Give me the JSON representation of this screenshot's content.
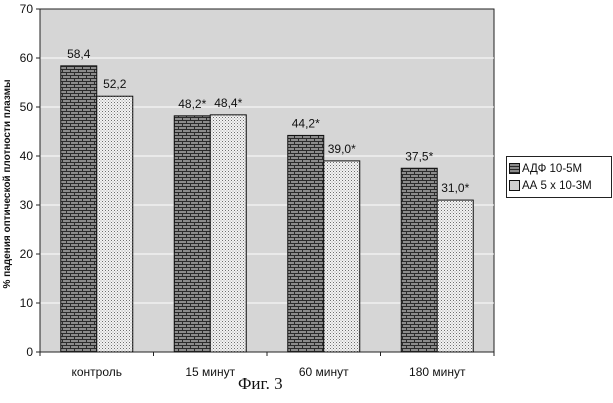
{
  "chart_data": {
    "type": "bar",
    "ylabel": "% падения оптической плотности плазмы",
    "xlabel": "",
    "ylim": [
      0,
      70
    ],
    "yticks": [
      0,
      10,
      20,
      30,
      40,
      50,
      60,
      70
    ],
    "grid": true,
    "legend_position": "right",
    "categories": [
      "контроль",
      "15 минут",
      "60 минут",
      "180 минут"
    ],
    "series": [
      {
        "name": "АДФ 10-5М",
        "values": [
          58.4,
          48.2,
          44.2,
          37.5
        ],
        "labels": [
          "58,4",
          "48,2*",
          "44,2*",
          "37,5*"
        ],
        "pattern": "brick"
      },
      {
        "name": "АА 5 х 10-3М",
        "values": [
          52.2,
          48.4,
          39.0,
          31.0
        ],
        "labels": [
          "52,2",
          "48,4*",
          "39,0*",
          "31,0*"
        ],
        "pattern": "dots"
      }
    ],
    "colors": {
      "plot_background": "#d6d6d6",
      "gridline": "#ffffff",
      "axis": "#222222"
    }
  },
  "caption": "Фиг. 3"
}
